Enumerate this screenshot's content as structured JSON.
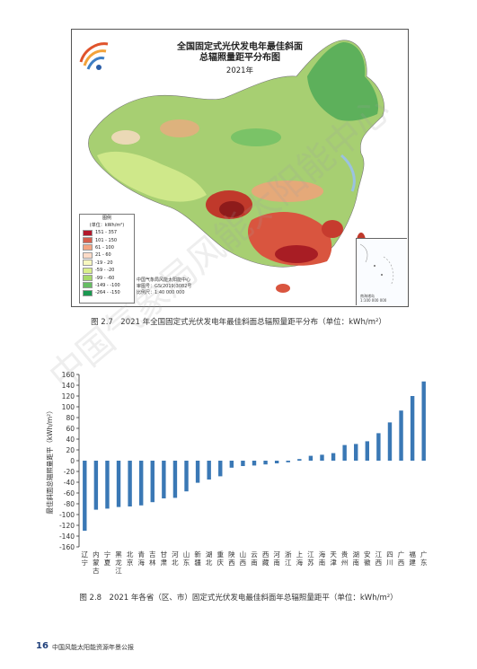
{
  "map": {
    "title_line1": "全国固定式光伏发电年最佳斜面",
    "title_line2": "总辐照量距平分布图",
    "title_line3": "2021年",
    "legend_title": "图例",
    "legend_unit": "(单位：kWh/m²)",
    "legend_items": [
      {
        "label": "151 - 357",
        "color": "#b2182b"
      },
      {
        "label": "101 - 150",
        "color": "#d6604d"
      },
      {
        "label": "61 - 100",
        "color": "#f4a582"
      },
      {
        "label": "21 - 60",
        "color": "#fddbc7"
      },
      {
        "label": "-19 - 20",
        "color": "#f7f7c0"
      },
      {
        "label": "-59 - -20",
        "color": "#d9ef8b"
      },
      {
        "label": "-99 - -60",
        "color": "#a6d96a"
      },
      {
        "label": "-149 - -100",
        "color": "#66bd63"
      },
      {
        "label": "-264 - -150",
        "color": "#1a9850"
      }
    ],
    "credit_line1": "中国气象局风能太阳能中心",
    "credit_line2": "审图号：GS(2019)3082号",
    "credit_line3": "比例尺：1:40 000 000",
    "inset_label1": "南海诸岛",
    "inset_label2": "1:100 000 000"
  },
  "caption1": "图 2.7　2021 年全国固定式光伏发电年最佳斜面总辐照量距平分布（单位：kWh/m²）",
  "caption2": "图 2.8　2021 年各省（区、市）固定式光伏发电最佳斜面年总辐照量距平（单位：kWh/m²）",
  "footer": {
    "page_number": "16",
    "text": "中国风能太阳能资源年景公报"
  },
  "watermark": "中国气象局风能太阳能中心",
  "chart_data": {
    "type": "bar",
    "title": "",
    "xlabel": "",
    "ylabel": "最佳斜面总辐照量距平（kWh/m²）",
    "ylim": [
      -160,
      160
    ],
    "yticks": [
      -160,
      -140,
      -120,
      -100,
      -80,
      -60,
      -40,
      -20,
      0,
      20,
      40,
      60,
      80,
      100,
      120,
      140,
      160
    ],
    "bar_color": "#3a78b5",
    "categories": [
      "辽宁",
      "内蒙古",
      "宁夏",
      "黑龙江",
      "北京",
      "青海",
      "吉林",
      "甘肃",
      "河北",
      "山东",
      "新疆",
      "湖北",
      "重庆",
      "陕西",
      "山西",
      "云南",
      "西藏",
      "河南",
      "浙江",
      "上海",
      "江苏",
      "海南",
      "天津",
      "贵州",
      "湖南",
      "安徽",
      "江西",
      "四川",
      "广西",
      "福建",
      "广东"
    ],
    "values": [
      -130,
      -91,
      -89,
      -86,
      -85,
      -83,
      -77,
      -70,
      -69,
      -57,
      -41,
      -35,
      -29,
      -13,
      -10,
      -9,
      -7,
      -5,
      -3,
      3,
      9,
      11,
      14,
      29,
      31,
      36,
      51,
      71,
      93,
      120,
      147
    ]
  }
}
